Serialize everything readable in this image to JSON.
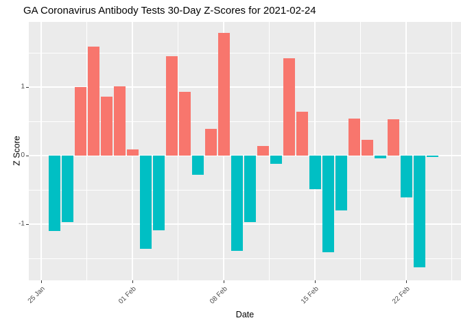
{
  "chart_data": {
    "type": "bar",
    "title": "GA Coronavirus Antibody Tests 30-Day Z-Scores for 2021-02-24",
    "xlabel": "Date",
    "ylabel": "Z Score",
    "ylim": [
      -1.82,
      1.95
    ],
    "yticks": [
      {
        "value": -1,
        "label": "-1"
      },
      {
        "value": 0,
        "label": "0"
      },
      {
        "value": 1,
        "label": "1"
      }
    ],
    "yticks_minor": [
      -1.5,
      -0.5,
      0.5,
      1.5
    ],
    "xticks": [
      {
        "label": "25 Jan",
        "days_from_first_bar": -1
      },
      {
        "label": "01 Feb",
        "days_from_first_bar": 6
      },
      {
        "label": "08 Feb",
        "days_from_first_bar": 13
      },
      {
        "label": "15 Feb",
        "days_from_first_bar": 20
      },
      {
        "label": "22 Feb",
        "days_from_first_bar": 27
      }
    ],
    "grid": true,
    "legend": "none",
    "panel_background": "#EBEBEB",
    "bar_colors": {
      "positive": "#F8766D",
      "negative": "#00BFC4"
    },
    "dates": [
      "2021-01-26",
      "2021-01-27",
      "2021-01-28",
      "2021-01-29",
      "2021-01-30",
      "2021-01-31",
      "2021-02-01",
      "2021-02-02",
      "2021-02-03",
      "2021-02-04",
      "2021-02-05",
      "2021-02-06",
      "2021-02-07",
      "2021-02-08",
      "2021-02-09",
      "2021-02-10",
      "2021-02-11",
      "2021-02-12",
      "2021-02-13",
      "2021-02-14",
      "2021-02-15",
      "2021-02-16",
      "2021-02-17",
      "2021-02-18",
      "2021-02-19",
      "2021-02-20",
      "2021-02-21",
      "2021-02-22",
      "2021-02-23",
      "2021-02-24"
    ],
    "values": [
      -1.1,
      -0.97,
      1.0,
      1.59,
      0.86,
      1.01,
      0.09,
      -1.36,
      -1.09,
      1.45,
      0.93,
      -0.28,
      0.39,
      1.79,
      -1.39,
      -0.97,
      0.14,
      -0.12,
      1.42,
      0.64,
      -0.49,
      -1.41,
      -0.8,
      0.54,
      0.23,
      -0.04,
      0.53,
      -0.61,
      -1.63,
      -0.02
    ]
  }
}
